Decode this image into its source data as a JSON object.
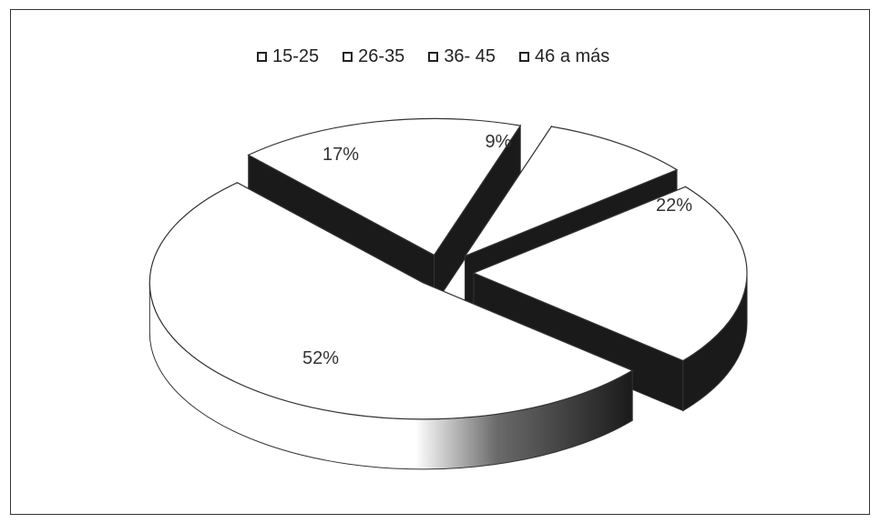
{
  "chart_data": {
    "type": "pie",
    "title": "",
    "categories": [
      "15-25",
      "26-35",
      "36- 45",
      "46 a más"
    ],
    "values": [
      52,
      17,
      9,
      22
    ],
    "labels": [
      "52%",
      "17%",
      "9%",
      "22%"
    ],
    "legend_position": "top",
    "style": "3d-exploded",
    "colors": {
      "face": "#ffffff",
      "side_dark": "#1a1a1a",
      "outline": "#333333"
    }
  }
}
